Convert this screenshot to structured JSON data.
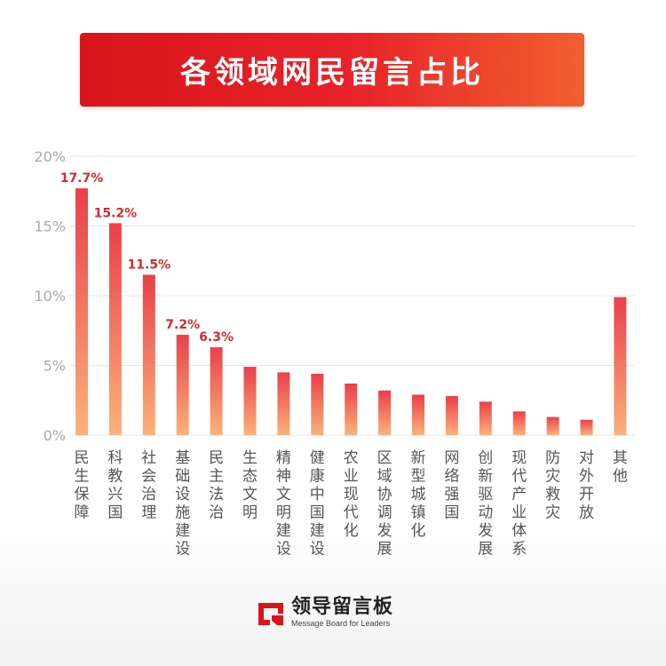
{
  "header": {
    "title": "各领域网民留言占比"
  },
  "chart_data": {
    "type": "bar",
    "categories": [
      "民生保障",
      "科教兴国",
      "社会治理",
      "基础设施建设",
      "民主法治",
      "生态文明",
      "精神文明建设",
      "健康中国建设",
      "农业现代化",
      "区域协调发展",
      "新型城镇化",
      "网络强国",
      "创新驱动发展",
      "现代产业体系",
      "防灾救灾",
      "对外开放",
      "其他"
    ],
    "values": [
      17.7,
      15.2,
      11.5,
      7.2,
      6.3,
      4.9,
      4.5,
      4.4,
      3.7,
      3.2,
      2.9,
      2.8,
      2.4,
      1.7,
      1.3,
      1.1,
      9.9
    ],
    "data_labels": [
      "17.7%",
      "15.2%",
      "11.5%",
      "7.2%",
      "6.3%",
      "",
      "",
      "",
      "",
      "",
      "",
      "",
      "",
      "",
      "",
      "",
      ""
    ],
    "y_ticks": [
      "0%",
      "5%",
      "10%",
      "15%",
      "20%"
    ],
    "y_tick_values": [
      0,
      5,
      10,
      15,
      20
    ],
    "ylim": [
      0,
      20
    ],
    "grid": true,
    "colors": {
      "bar_top": "#e9404a",
      "bar_bottom": "#fbb27a",
      "label": "#d42a2f",
      "grid": "#e6e6e6",
      "tick": "#aaaaaa",
      "category": "#555555"
    }
  },
  "footer": {
    "logo_name": "领导留言板",
    "logo_sub": "Message Board for Leaders",
    "logo_icon": "message-board-logo-icon"
  }
}
